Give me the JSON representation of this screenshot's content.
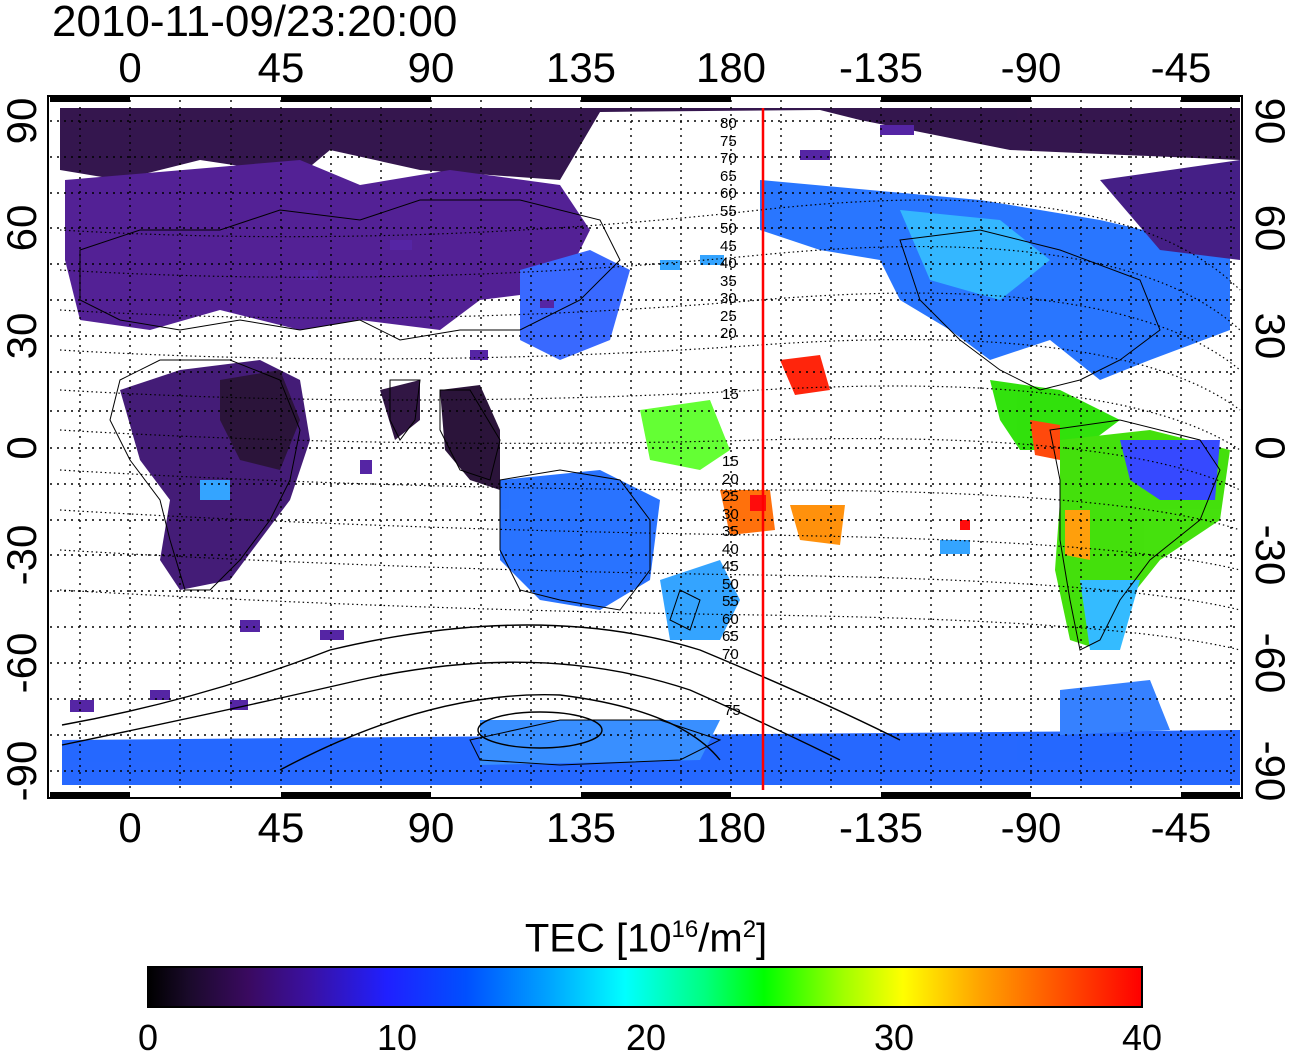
{
  "header": {
    "timestamp": "2010-11-09/23:20:00"
  },
  "map": {
    "lon_ticks": [
      "0",
      "45",
      "90",
      "135",
      "180",
      "-135",
      "-90",
      "-45"
    ],
    "lat_ticks": [
      "90",
      "60",
      "30",
      "0",
      "-30",
      "-60",
      "-90"
    ],
    "contour_labels": [
      "80",
      "75",
      "70",
      "65",
      "60",
      "55",
      "50",
      "45",
      "40",
      "35",
      "30",
      "25",
      "20",
      "15",
      "15",
      "20",
      "25",
      "30",
      "35",
      "40",
      "45",
      "50",
      "55",
      "60",
      "65",
      "70",
      "75"
    ],
    "terminator_color": "#ff0000"
  },
  "colorbar": {
    "title_prefix": "TEC  [10",
    "title_exp1": "16",
    "title_mid": "/m",
    "title_exp2": "2",
    "title_suffix": "]",
    "ticks": [
      "0",
      "10",
      "20",
      "30",
      "40"
    ]
  }
}
